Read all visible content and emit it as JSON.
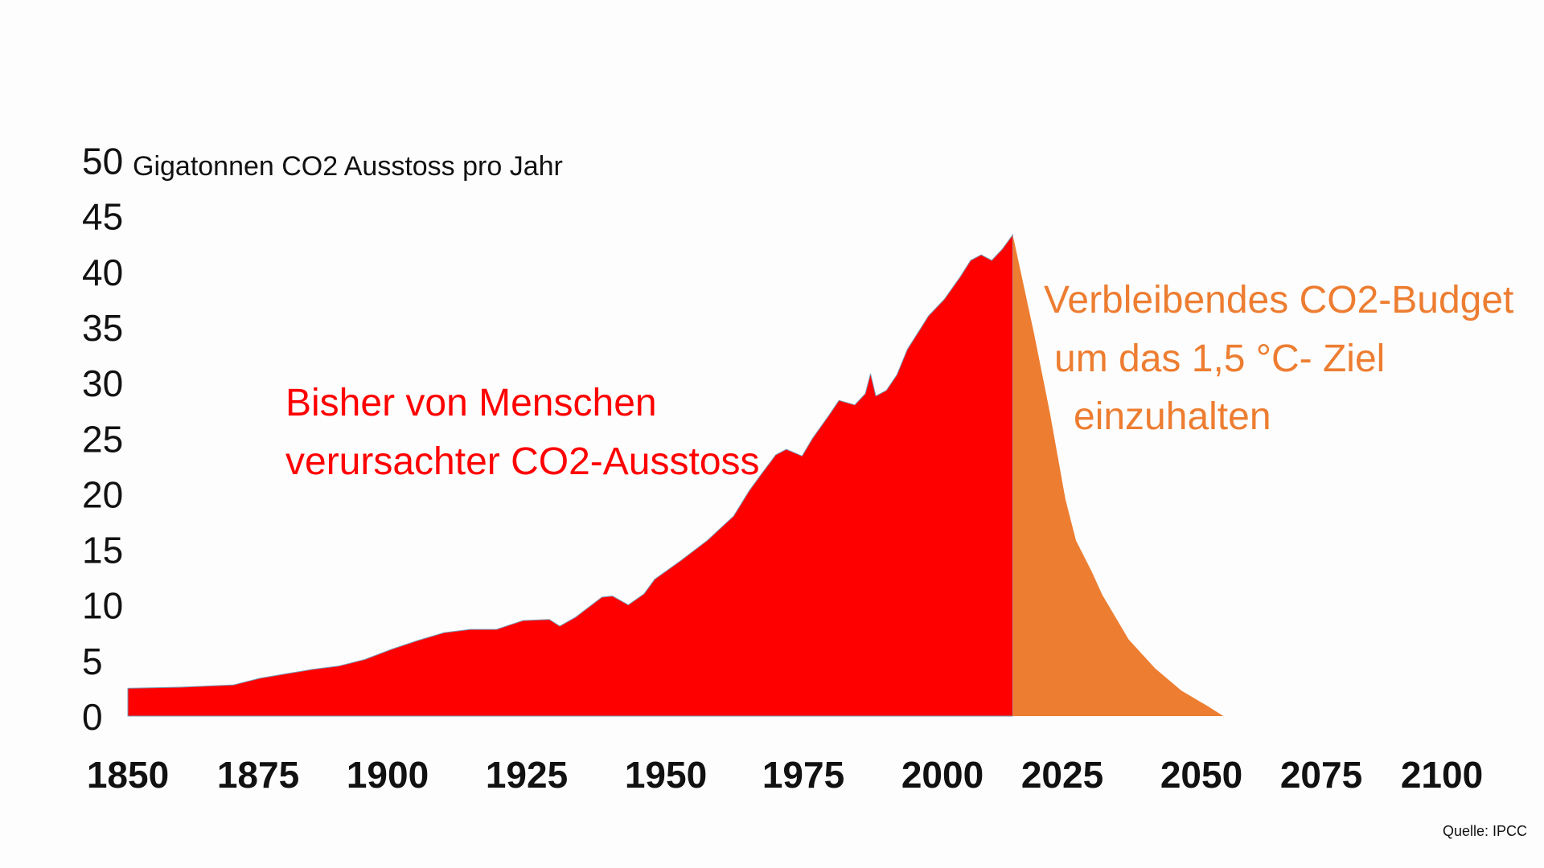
{
  "chart_data": {
    "type": "area",
    "title": "",
    "ylabel": "Gigatonnen CO2 Ausstoss pro Jahr",
    "xlabel": "",
    "ylim": [
      0,
      50
    ],
    "xlim": [
      1850,
      2100
    ],
    "yticks": [
      "0",
      "5",
      "10",
      "15",
      "20",
      "25",
      "30",
      "35",
      "40",
      "45",
      "50"
    ],
    "xticks": [
      "1850",
      "1875",
      "1900",
      "1925",
      "1950",
      "1975",
      "2000",
      "2025",
      "2050",
      "2075",
      "2100"
    ],
    "grid": false,
    "series": [
      {
        "name": "Bisher von Menschen verursachter CO2-Ausstoss",
        "color": "#ff0000",
        "x": [
          1850,
          1860,
          1870,
          1875,
          1880,
          1885,
          1890,
          1895,
          1900,
          1905,
          1910,
          1915,
          1920,
          1925,
          1930,
          1932,
          1935,
          1940,
          1942,
          1945,
          1948,
          1950,
          1955,
          1960,
          1965,
          1968,
          1970,
          1973,
          1975,
          1978,
          1980,
          1983,
          1985,
          1988,
          1990,
          1991,
          1992,
          1994,
          1996,
          1998,
          2000,
          2002,
          2005,
          2008,
          2010,
          2012,
          2014,
          2016,
          2018
        ],
        "y": [
          2.5,
          2.6,
          2.8,
          3.4,
          3.8,
          4.2,
          4.5,
          5.1,
          6.0,
          6.8,
          7.5,
          7.8,
          7.8,
          8.6,
          8.7,
          8.1,
          8.9,
          10.7,
          10.8,
          10.0,
          11.0,
          12.3,
          14.0,
          15.8,
          18.0,
          20.3,
          21.6,
          23.5,
          24.0,
          23.4,
          25.0,
          27.0,
          28.4,
          28.0,
          29.0,
          30.8,
          28.8,
          29.3,
          30.7,
          33.0,
          34.5,
          36.0,
          37.5,
          39.5,
          41.0,
          41.5,
          41.0,
          42.0,
          43.3
        ]
      },
      {
        "name": "Verbleibendes CO2-Budget um das 1,5 °C- Ziel einzuhalten",
        "color": "#ed7d31",
        "x": [
          2018,
          2020,
          2022,
          2025,
          2028,
          2030,
          2033,
          2035,
          2040,
          2045,
          2050,
          2055,
          2058
        ],
        "y": [
          43.3,
          38.9,
          34.5,
          27.4,
          19.5,
          15.8,
          13.0,
          10.9,
          6.9,
          4.3,
          2.3,
          0.9,
          0
        ]
      }
    ],
    "annotations": {
      "red_line1": "Bisher von Menschen",
      "red_line2": "verursachter CO2-Ausstoss",
      "orange_line1": "Verbleibendes CO2-Budget",
      "orange_line2": "um das 1,5 °C- Ziel",
      "orange_line3": "einzuhalten"
    },
    "source": "Quelle: IPCC"
  }
}
